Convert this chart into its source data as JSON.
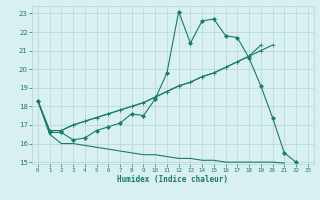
{
  "xlabel": "Humidex (Indice chaleur)",
  "x_values": [
    0,
    1,
    2,
    3,
    4,
    5,
    6,
    7,
    8,
    9,
    10,
    11,
    12,
    13,
    14,
    15,
    16,
    17,
    18,
    19,
    20,
    21,
    22,
    23
  ],
  "line1_y": [
    18.3,
    16.6,
    16.6,
    16.2,
    16.3,
    16.7,
    16.9,
    17.1,
    17.6,
    17.5,
    18.4,
    19.8,
    23.1,
    21.4,
    22.6,
    22.7,
    21.8,
    21.7,
    20.6,
    19.1,
    17.4,
    15.5,
    15.0,
    null
  ],
  "line2_y": [
    18.3,
    16.7,
    16.7,
    17.0,
    17.2,
    17.4,
    17.6,
    17.8,
    18.0,
    18.2,
    18.5,
    18.8,
    19.1,
    19.3,
    19.6,
    19.8,
    20.1,
    20.4,
    20.7,
    21.0,
    21.3,
    null,
    null,
    null
  ],
  "line3_y": [
    18.3,
    16.7,
    16.7,
    17.0,
    17.2,
    17.4,
    17.6,
    17.8,
    18.0,
    18.2,
    18.5,
    18.8,
    19.1,
    19.3,
    19.6,
    19.8,
    20.1,
    20.4,
    20.7,
    21.3,
    null,
    null,
    null,
    null
  ],
  "line4_y": [
    18.3,
    16.5,
    16.0,
    16.0,
    15.9,
    15.8,
    15.7,
    15.6,
    15.5,
    15.4,
    15.4,
    15.3,
    15.2,
    15.2,
    15.1,
    15.1,
    15.0,
    15.0,
    15.0,
    15.0,
    15.0,
    14.95,
    null,
    null
  ],
  "line_color": "#1a7a6e",
  "bg_color": "#d8f0f0",
  "grid_color": "#b8d4d4",
  "ylim": [
    14.9,
    23.4
  ],
  "yticks": [
    15,
    16,
    17,
    18,
    19,
    20,
    21,
    22,
    23
  ],
  "xlim": [
    -0.5,
    23.5
  ],
  "xticks": [
    0,
    1,
    2,
    3,
    4,
    5,
    6,
    7,
    8,
    9,
    10,
    11,
    12,
    13,
    14,
    15,
    16,
    17,
    18,
    19,
    20,
    21,
    22,
    23
  ]
}
